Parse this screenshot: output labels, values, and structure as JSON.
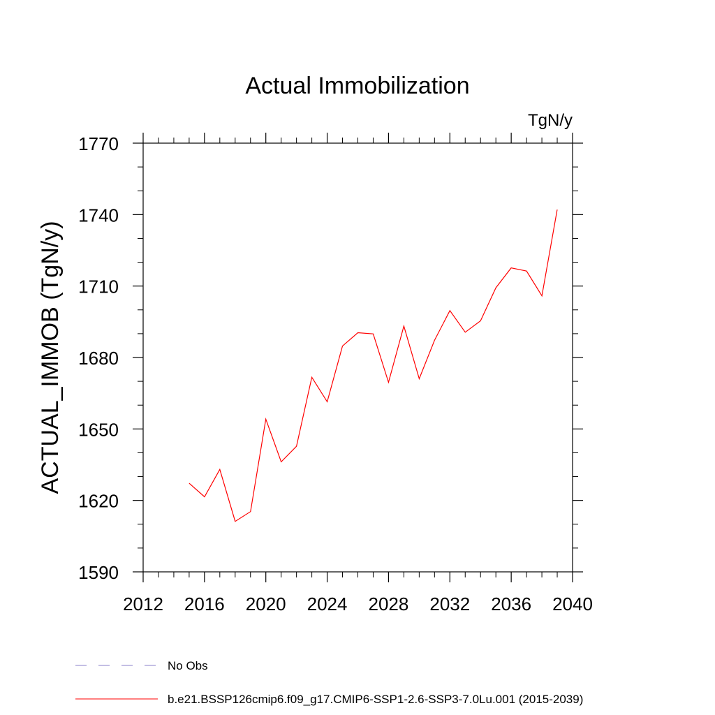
{
  "chart_data": {
    "type": "line",
    "title": "Actual Immobilization",
    "units": "TgN/y",
    "ylabel": "ACTUAL_IMMOB  (TgN/y)",
    "xlim": [
      2012,
      2040
    ],
    "ylim": [
      1590,
      1770
    ],
    "xticks": [
      2012,
      2016,
      2020,
      2024,
      2028,
      2032,
      2036,
      2040
    ],
    "yticks": [
      1590,
      1620,
      1650,
      1680,
      1710,
      1740,
      1770
    ],
    "series": [
      {
        "name": "b.e21.BSSP126cmip6.f09_g17.CMIP6-SSP1-2.6-SSP3-7.0Lu.001 (2015-2039)",
        "color": "#ff0000",
        "x": [
          2015,
          2016,
          2017,
          2018,
          2019,
          2020,
          2021,
          2022,
          2023,
          2024,
          2025,
          2026,
          2027,
          2028,
          2029,
          2030,
          2031,
          2032,
          2033,
          2034,
          2035,
          2036,
          2037,
          2038,
          2039
        ],
        "y": [
          1627.2,
          1621.5,
          1633.0,
          1611.2,
          1615.3,
          1654.1,
          1636.2,
          1642.7,
          1671.7,
          1661.4,
          1684.8,
          1690.4,
          1689.9,
          1669.6,
          1693.2,
          1671.1,
          1687.2,
          1699.7,
          1690.6,
          1695.4,
          1709.3,
          1717.6,
          1716.3,
          1705.9,
          1742.1
        ]
      }
    ],
    "legend": [
      {
        "label": "No Obs",
        "style": "dashed",
        "color": "#8a7fc9"
      },
      {
        "label": "b.e21.BSSP126cmip6.f09_g17.CMIP6-SSP1-2.6-SSP3-7.0Lu.001 (2015-2039)",
        "style": "solid",
        "color": "#ff0000"
      }
    ]
  }
}
